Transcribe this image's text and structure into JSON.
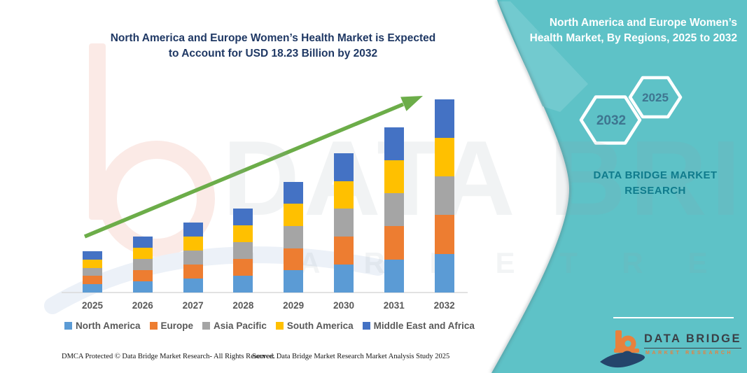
{
  "chart_title": {
    "line1": "North America and Europe Women’s Health Market is Expected",
    "line2": "to Account for USD 18.23 Billion by 2032"
  },
  "chart_data": {
    "type": "bar",
    "stacked": true,
    "title": "North America and Europe Women’s Health Market is Expected to Account for USD 18.23 Billion by 2032",
    "unit": "USD Billion",
    "categories": [
      "2025",
      "2026",
      "2027",
      "2028",
      "2029",
      "2030",
      "2031",
      "2032"
    ],
    "series": [
      {
        "name": "North America",
        "color": "#5B9BD5",
        "values": [
          0.78,
          1.06,
          1.32,
          1.59,
          2.09,
          2.63,
          3.12,
          3.65
        ]
      },
      {
        "name": "Europe",
        "color": "#ED7D31",
        "values": [
          0.78,
          1.06,
          1.32,
          1.59,
          2.09,
          2.63,
          3.12,
          3.65
        ]
      },
      {
        "name": "Asia Pacific",
        "color": "#A5A5A5",
        "values": [
          0.78,
          1.06,
          1.32,
          1.59,
          2.09,
          2.63,
          3.12,
          3.65
        ]
      },
      {
        "name": "South America",
        "color": "#FFC000",
        "values": [
          0.78,
          1.06,
          1.32,
          1.59,
          2.09,
          2.63,
          3.12,
          3.65
        ]
      },
      {
        "name": "Middle East and Africa",
        "color": "#4472C4",
        "values": [
          0.78,
          1.06,
          1.32,
          1.59,
          2.09,
          2.63,
          3.12,
          3.65
        ]
      }
    ],
    "totals_estimated": [
      3.9,
      5.3,
      6.6,
      7.9,
      10.4,
      13.2,
      15.6,
      18.23
    ],
    "final_year_total_labeled": "USD 18.23 Billion by 2032",
    "values_estimated_from_pixels": true,
    "ylim": [
      0,
      20
    ],
    "y_axis_visible": false,
    "grid": false,
    "legend_position": "bottom",
    "trend_arrow": {
      "present": true,
      "color": "#6CAD49",
      "direction": "up-right"
    }
  },
  "right_panel": {
    "title": "North America and Europe Women’s Health Market, By Regions, 2025 to 2032",
    "hexagon_left_year": "2032",
    "hexagon_right_year": "2025",
    "brand_line1": "DATA BRIDGE MARKET",
    "brand_line2": "RESEARCH"
  },
  "footer": {
    "dmca": "DMCA Protected © Data Bridge Market Research-  All Rights Reserved.",
    "source": "Source: Data Bridge Market Research  Market Analysis Study 2025"
  },
  "logo": {
    "brand": "DATA BRIDGE",
    "tagline": "MARKET RESEARCH"
  },
  "watermark": {
    "text_large": "DATA BRI",
    "text_spaced": "M A R K E T    R E S E A R C H"
  },
  "colors": {
    "panel_teal": "#5EC2C7",
    "panel_teal_light": "#76CBD0",
    "title_navy": "#1F3864",
    "axis_text_gray": "#595959",
    "axis_line_gray": "#D9D9D9",
    "arrow_green": "#6CAD49",
    "hex_year_text": "#3E7590",
    "panel_brand_text": "#0F7B8C",
    "logo_orange": "#E8813D",
    "logo_navy": "#24456B"
  }
}
